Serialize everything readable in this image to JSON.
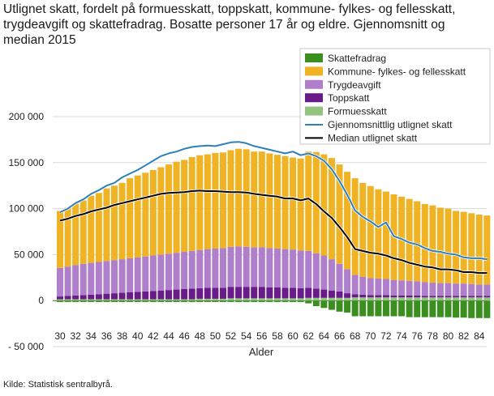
{
  "title": "Utlignet skatt, fordelt på formuesskatt, toppskatt, kommune- fylkes- og fellesskatt, trygdeavgift og skattefradrag. Bosatte personer 17 år og eldre. Gjennomsnitt og median 2015",
  "source": "Kilde: Statistisk sentralbyrå.",
  "colors": {
    "Skattefradrag": "#3a8f1e",
    "Kommune": "#f0b323",
    "Trygdeavgift": "#b07fcc",
    "Toppskatt": "#6a1b8a",
    "Formuesskatt": "#93c47d",
    "mean": "#2d80b8",
    "median": "#000000",
    "grid": "#d9d9d9"
  },
  "chart_data": {
    "type": "bar",
    "stacked": true,
    "xlabel": "Alder",
    "ylabel": "",
    "ylim": [
      -50000,
      200000
    ],
    "yticks": [
      -50000,
      0,
      50000,
      100000,
      150000,
      200000
    ],
    "ytick_labels": [
      "- 50 000",
      "0",
      "50 000",
      "100 000",
      "150 000",
      "200 000"
    ],
    "x": [
      30,
      31,
      32,
      33,
      34,
      35,
      36,
      37,
      38,
      39,
      40,
      41,
      42,
      43,
      44,
      45,
      46,
      47,
      48,
      49,
      50,
      51,
      52,
      53,
      54,
      55,
      56,
      57,
      58,
      59,
      60,
      61,
      62,
      63,
      64,
      65,
      66,
      67,
      68,
      69,
      70,
      71,
      72,
      73,
      74,
      75,
      76,
      77,
      78,
      79,
      80,
      81,
      82,
      83,
      84,
      85
    ],
    "xtick_labels": [
      "30",
      "32",
      "34",
      "36",
      "38",
      "40",
      "42",
      "44",
      "46",
      "48",
      "50",
      "52",
      "54",
      "56",
      "58",
      "60",
      "62",
      "64",
      "66",
      "68",
      "70",
      "72",
      "74",
      "76",
      "78",
      "80",
      "82",
      "84"
    ],
    "series": [
      {
        "name": "Skattefradrag",
        "type": "bar",
        "values": [
          -1500,
          -1500,
          -1500,
          -1500,
          -1500,
          -1500,
          -1500,
          -1500,
          -1500,
          -1500,
          -1500,
          -1500,
          -1500,
          -1500,
          -1500,
          -1500,
          -1500,
          -1500,
          -1500,
          -1500,
          -1500,
          -1500,
          -1500,
          -1500,
          -1500,
          -1500,
          -1500,
          -1500,
          -1500,
          -1500,
          -1500,
          -1500,
          -3000,
          -6000,
          -8000,
          -10000,
          -12000,
          -13000,
          -17000,
          -17000,
          -17000,
          -17000,
          -17000,
          -17000,
          -17000,
          -18000,
          -18000,
          -18000,
          -18000,
          -18000,
          -18000,
          -18500,
          -18500,
          -19000,
          -19000,
          -19000
        ]
      },
      {
        "name": "Formuesskatt",
        "type": "bar",
        "values": [
          1500,
          1500,
          1500,
          1500,
          1500,
          1500,
          1500,
          1500,
          1500,
          1500,
          1500,
          1500,
          1500,
          1500,
          1500,
          1500,
          1500,
          1500,
          2000,
          2000,
          2000,
          2000,
          2500,
          2500,
          2500,
          2500,
          2500,
          2500,
          2500,
          2500,
          2500,
          2500,
          3000,
          3000,
          3000,
          3000,
          3000,
          3000,
          3500,
          3500,
          3500,
          3500,
          3500,
          3500,
          3500,
          3500,
          3500,
          3500,
          3500,
          3500,
          3500,
          3500,
          3500,
          3500,
          3500,
          3500
        ]
      },
      {
        "name": "Toppskatt",
        "type": "bar",
        "values": [
          3000,
          3500,
          4000,
          4500,
          5000,
          5500,
          6000,
          6500,
          7000,
          7500,
          8000,
          8500,
          9000,
          9500,
          10000,
          10500,
          11000,
          11500,
          11500,
          12000,
          12000,
          12000,
          12500,
          12500,
          12500,
          12500,
          12500,
          12000,
          12000,
          11500,
          11500,
          11000,
          11000,
          10000,
          9000,
          8000,
          7000,
          5000,
          3500,
          3000,
          2500,
          2500,
          2500,
          2000,
          2000,
          2000,
          2000,
          1500,
          1500,
          1500,
          1500,
          1500,
          1500,
          1500,
          1500,
          1500
        ]
      },
      {
        "name": "Trygdeavgift",
        "type": "bar",
        "values": [
          31000,
          32000,
          33000,
          34000,
          34500,
          35000,
          35500,
          36000,
          36500,
          37000,
          37500,
          38000,
          38500,
          39000,
          39500,
          40000,
          40500,
          41000,
          41500,
          42000,
          42500,
          43000,
          43500,
          44000,
          43500,
          43000,
          43000,
          42500,
          42000,
          42000,
          41500,
          41000,
          40000,
          38500,
          37000,
          34000,
          30000,
          26000,
          21000,
          19500,
          18500,
          18000,
          17500,
          17000,
          16500,
          16000,
          15500,
          15000,
          14500,
          14000,
          14000,
          13500,
          13500,
          13000,
          12500,
          12500
        ]
      },
      {
        "name": "Kommune- fylkes- og fellesskatt",
        "type": "bar",
        "values": [
          62000,
          64000,
          67000,
          69000,
          73000,
          75000,
          79000,
          81000,
          83000,
          87000,
          89000,
          91000,
          93000,
          95000,
          97000,
          99000,
          100000,
          102000,
          103000,
          103000,
          104000,
          104000,
          105000,
          106000,
          106000,
          104000,
          104000,
          103000,
          102000,
          101000,
          100000,
          100000,
          108000,
          110000,
          110000,
          110000,
          108000,
          106000,
          105000,
          102000,
          100000,
          97000,
          95000,
          93000,
          91000,
          89000,
          87000,
          85000,
          84000,
          82000,
          81000,
          79000,
          78000,
          77000,
          76000,
          75000
        ]
      },
      {
        "name": "Gjennomsnittlig utlignet skatt",
        "type": "line",
        "values": [
          96000,
          100000,
          106000,
          110000,
          116000,
          120000,
          125000,
          128000,
          134000,
          138000,
          142000,
          147000,
          152000,
          157000,
          160000,
          162000,
          165000,
          167000,
          168000,
          168500,
          168000,
          170000,
          172000,
          172500,
          171000,
          168000,
          166000,
          164000,
          162000,
          160000,
          162000,
          158000,
          160000,
          157000,
          152000,
          143000,
          130000,
          115000,
          98000,
          91000,
          86000,
          80000,
          85000,
          70000,
          67000,
          63000,
          61000,
          57000,
          54000,
          53000,
          51000,
          50000,
          47000,
          46000,
          46000,
          45000
        ]
      },
      {
        "name": "Median utlignet skatt",
        "type": "line",
        "values": [
          87000,
          89000,
          92000,
          94000,
          97000,
          99000,
          101000,
          104000,
          106000,
          108000,
          110000,
          112000,
          114000,
          116000,
          117000,
          117500,
          118000,
          119000,
          119500,
          119000,
          119000,
          118500,
          118000,
          118000,
          117500,
          116000,
          115000,
          114000,
          113000,
          111000,
          111000,
          109000,
          111000,
          105000,
          97000,
          90000,
          80000,
          69000,
          56000,
          54000,
          52000,
          51000,
          49000,
          46000,
          44000,
          41000,
          39000,
          37000,
          36000,
          34000,
          34000,
          33000,
          31000,
          31000,
          30000,
          30000
        ]
      }
    ],
    "legend_position": "top-right",
    "legend": [
      {
        "label": "Skattefradrag",
        "kind": "box",
        "color_key": "Skattefradrag"
      },
      {
        "label": "Kommune- fylkes- og fellesskatt",
        "kind": "box",
        "color_key": "Kommune"
      },
      {
        "label": "Trygdeavgift",
        "kind": "box",
        "color_key": "Trygdeavgift"
      },
      {
        "label": "Toppskatt",
        "kind": "box",
        "color_key": "Toppskatt"
      },
      {
        "label": "Formuesskatt",
        "kind": "box",
        "color_key": "Formuesskatt"
      },
      {
        "label": "Gjennomsnittlig utlignet skatt",
        "kind": "line",
        "color_key": "mean"
      },
      {
        "label": "Median utlignet skatt",
        "kind": "line",
        "color_key": "median"
      }
    ]
  }
}
